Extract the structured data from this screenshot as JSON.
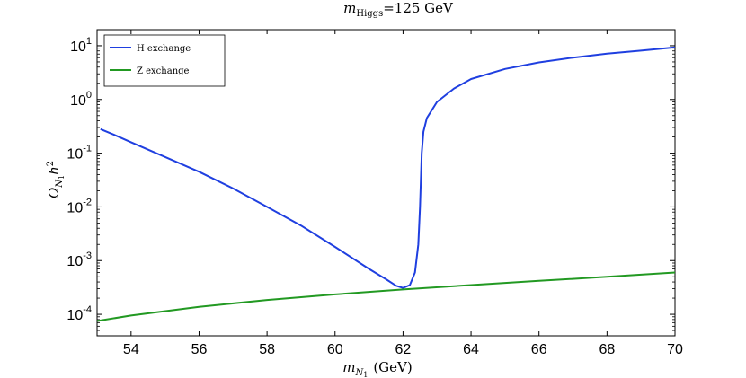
{
  "chart_data": {
    "type": "line",
    "title": {
      "base": "m",
      "sub": "Higgs",
      "rest": "=125 GeV"
    },
    "xlabel": {
      "base": "m",
      "sub": "N",
      "subsub": "1",
      "rest": "(GeV)"
    },
    "ylabel": {
      "base": "Ω",
      "sub": "N",
      "subsub": "1",
      "rest": "h",
      "sup": "2"
    },
    "xlim": [
      53,
      70
    ],
    "ylim_log10": [
      -4.4,
      1.3
    ],
    "yscale": "log",
    "x_ticks": [
      "54",
      "56",
      "58",
      "60",
      "62",
      "64",
      "66",
      "68",
      "70"
    ],
    "y_ticks": [
      {
        "base": "10",
        "exp": "1"
      },
      {
        "base": "10",
        "exp": "0"
      },
      {
        "base": "10",
        "exp": "-1"
      },
      {
        "base": "10",
        "exp": "-2"
      },
      {
        "base": "10",
        "exp": "-3"
      },
      {
        "base": "10",
        "exp": "-4"
      }
    ],
    "legend_position": "top-left",
    "series": [
      {
        "name": "H exchange",
        "color": "#1f3fe0",
        "x": [
          53.1,
          53.5,
          54,
          55,
          56,
          57,
          58,
          59,
          60,
          61,
          61.5,
          61.8,
          62.0,
          62.2,
          62.35,
          62.45,
          62.5,
          62.55,
          62.6,
          62.7,
          63,
          63.5,
          64,
          65,
          66,
          67,
          68,
          69,
          70
        ],
        "y": [
          0.28,
          0.22,
          0.16,
          0.085,
          0.045,
          0.022,
          0.01,
          0.0045,
          0.0018,
          0.0007,
          0.00045,
          0.00034,
          0.00031,
          0.00035,
          0.0006,
          0.002,
          0.01,
          0.1,
          0.25,
          0.45,
          0.9,
          1.6,
          2.4,
          3.7,
          4.9,
          6.0,
          7.1,
          8.1,
          9.3
        ]
      },
      {
        "name": "Z exchange",
        "color": "#229922",
        "x": [
          53,
          54,
          56,
          58,
          60,
          62,
          64,
          66,
          68,
          70
        ],
        "y": [
          7.5e-05,
          9.5e-05,
          0.000138,
          0.000185,
          0.000235,
          0.00029,
          0.00035,
          0.00042,
          0.0005,
          0.0006
        ]
      }
    ]
  }
}
